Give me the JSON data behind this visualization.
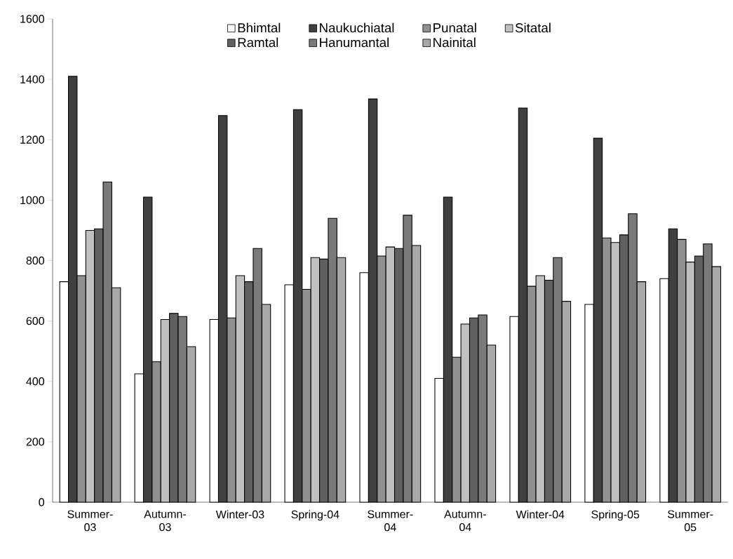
{
  "chart_data": {
    "type": "bar",
    "categories": [
      "Summer-03",
      "Autumn-03",
      "Winter-03",
      "Spring-04",
      "Summer-04",
      "Autumn-04",
      "Winter-04",
      "Spring-05",
      "Summer-05"
    ],
    "series": [
      {
        "name": "Bhimtal",
        "color": "#ffffff",
        "values": [
          730,
          425,
          605,
          720,
          760,
          410,
          615,
          655,
          740
        ]
      },
      {
        "name": "Naukuchiatal",
        "color": "#404040",
        "values": [
          1410,
          1010,
          1280,
          1300,
          1335,
          1010,
          1305,
          1205,
          905
        ]
      },
      {
        "name": "Punatal",
        "color": "#909090",
        "values": [
          750,
          465,
          610,
          705,
          815,
          480,
          715,
          875,
          870
        ]
      },
      {
        "name": "Sitatal",
        "color": "#c0c0c0",
        "values": [
          900,
          605,
          750,
          810,
          845,
          590,
          750,
          860,
          795
        ]
      },
      {
        "name": "Ramtal",
        "color": "#606060",
        "values": [
          905,
          625,
          730,
          805,
          840,
          610,
          735,
          885,
          815
        ]
      },
      {
        "name": "Hanumantal",
        "color": "#7a7a7a",
        "values": [
          1060,
          615,
          840,
          940,
          950,
          620,
          810,
          955,
          855
        ]
      },
      {
        "name": "Nainital",
        "color": "#a8a8a8",
        "values": [
          710,
          515,
          655,
          810,
          850,
          520,
          665,
          730,
          780
        ]
      }
    ],
    "ylim": [
      0,
      1600
    ],
    "yticks": [
      0,
      200,
      400,
      600,
      800,
      1000,
      1200,
      1400,
      1600
    ],
    "legend": "top"
  }
}
